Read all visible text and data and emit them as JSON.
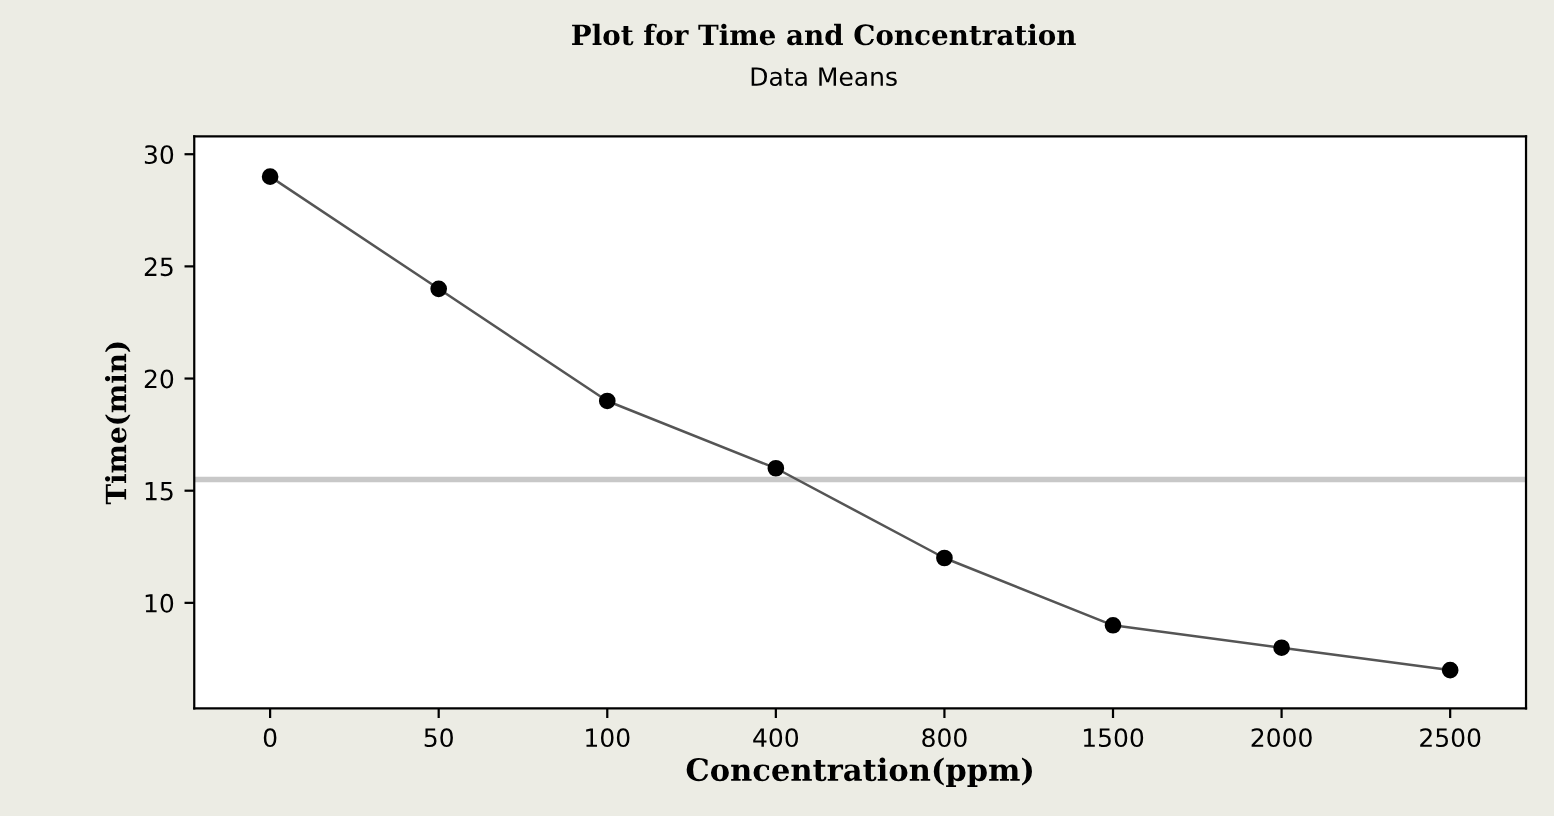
{
  "chart_data": {
    "type": "line",
    "title": "Plot for Time and Concentration",
    "subtitle": "Data Means",
    "xlabel": "Concentration(ppm)",
    "ylabel": "Time(min)",
    "categories": [
      "0",
      "50",
      "100",
      "400",
      "800",
      "1500",
      "2000",
      "2500"
    ],
    "series": [
      {
        "color": "#000000",
        "values": [
          29,
          24,
          19,
          16,
          12,
          9,
          8,
          7
        ]
      }
    ],
    "ylim": [
      5.3,
      30.8
    ],
    "yticks": [
      10,
      15,
      20,
      25,
      30
    ],
    "ref_lines": [
      {
        "axis": "y",
        "value": 15.5,
        "color": "#c8c8c8",
        "line_style": "solid"
      }
    ],
    "grid": false,
    "legend": false,
    "marker": "circle",
    "line_style": "solid"
  }
}
